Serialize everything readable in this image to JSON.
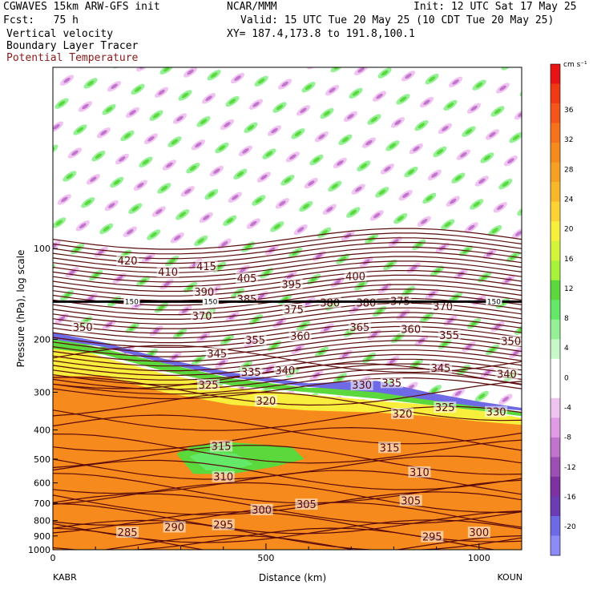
{
  "header": {
    "model": "CGWAVES 15km ARW-GFS init",
    "org": "NCAR/MMM",
    "init": "Init: 12 UTC Sat 17 May 25",
    "fcst": "Fcst:   75 h",
    "valid": "Valid: 15 UTC Tue 20 May 25 (10 CDT Tue 20 May 25)",
    "field1": "Vertical velocity",
    "field2": "Boundary Layer Tracer",
    "field3": "Potential Temperature",
    "xy": "XY= 187.4,173.8 to 191.8,100.1"
  },
  "colors": {
    "theta_contour": "#5a0a0a",
    "tropopause_line": "#000000"
  },
  "chart_data": {
    "type": "heatmap",
    "xlabel": "Distance (km)",
    "ylabel": "Pressure (hPa), log scale",
    "x_endpoint_labels": [
      "KABR",
      "KOUN"
    ],
    "xlim": [
      0,
      1100
    ],
    "x_ticks": [
      0,
      500,
      1000
    ],
    "ylim": [
      1000,
      25
    ],
    "y_scale": "log",
    "y_ticks": [
      1000,
      900,
      800,
      700,
      600,
      500,
      400,
      300,
      200,
      100
    ],
    "colorbar": {
      "units": "cm s⁻¹",
      "tick_labels": [
        36,
        32,
        28,
        24,
        20,
        16,
        12,
        8,
        4,
        0,
        -4,
        -8,
        -12,
        -16,
        -20
      ],
      "colors": [
        "#e81414",
        "#f03a14",
        "#f4561a",
        "#f6721c",
        "#f68a1c",
        "#f8a024",
        "#f8b82a",
        "#fcd234",
        "#f8ee3c",
        "#d4f43c",
        "#a8f23c",
        "#5ad83c",
        "#64e868",
        "#96f096",
        "#c8f8c8",
        "#ffffff",
        "#ffffff",
        "#f0c4f0",
        "#e09ae6",
        "#c074cc",
        "#9c50b4",
        "#7c32a0",
        "#6c3cb4",
        "#6e6ae6",
        "#8c8cf8"
      ]
    },
    "theta_labels": [
      {
        "value": 420,
        "x": 175,
        "p": 110
      },
      {
        "value": 410,
        "x": 270,
        "p": 120
      },
      {
        "value": 415,
        "x": 360,
        "p": 115
      },
      {
        "value": 405,
        "x": 455,
        "p": 126
      },
      {
        "value": 395,
        "x": 560,
        "p": 132
      },
      {
        "value": 400,
        "x": 710,
        "p": 124
      },
      {
        "value": 390,
        "x": 355,
        "p": 140
      },
      {
        "value": 385,
        "x": 455,
        "p": 148
      },
      {
        "value": 380,
        "x": 650,
        "p": 152
      },
      {
        "value": 380,
        "x": 735,
        "p": 152
      },
      {
        "value": 375,
        "x": 815,
        "p": 150
      },
      {
        "value": 375,
        "x": 565,
        "p": 160
      },
      {
        "value": 370,
        "x": 350,
        "p": 168
      },
      {
        "value": 370,
        "x": 915,
        "p": 156
      },
      {
        "value": 365,
        "x": 720,
        "p": 183
      },
      {
        "value": 360,
        "x": 580,
        "p": 196
      },
      {
        "value": 360,
        "x": 840,
        "p": 186
      },
      {
        "value": 355,
        "x": 475,
        "p": 202
      },
      {
        "value": 355,
        "x": 930,
        "p": 195
      },
      {
        "value": 350,
        "x": 70,
        "p": 183
      },
      {
        "value": 350,
        "x": 1075,
        "p": 204
      },
      {
        "value": 345,
        "x": 385,
        "p": 224
      },
      {
        "value": 345,
        "x": 910,
        "p": 250
      },
      {
        "value": 340,
        "x": 545,
        "p": 255
      },
      {
        "value": 340,
        "x": 1065,
        "p": 262
      },
      {
        "value": 335,
        "x": 465,
        "p": 258
      },
      {
        "value": 335,
        "x": 795,
        "p": 280
      },
      {
        "value": 330,
        "x": 725,
        "p": 285
      },
      {
        "value": 330,
        "x": 1040,
        "p": 350
      },
      {
        "value": 325,
        "x": 365,
        "p": 285
      },
      {
        "value": 325,
        "x": 920,
        "p": 338
      },
      {
        "value": 320,
        "x": 500,
        "p": 322
      },
      {
        "value": 320,
        "x": 820,
        "p": 355
      },
      {
        "value": 315,
        "x": 395,
        "p": 455
      },
      {
        "value": 315,
        "x": 790,
        "p": 460
      },
      {
        "value": 310,
        "x": 400,
        "p": 575
      },
      {
        "value": 310,
        "x": 860,
        "p": 555
      },
      {
        "value": 305,
        "x": 595,
        "p": 710
      },
      {
        "value": 305,
        "x": 840,
        "p": 690
      },
      {
        "value": 300,
        "x": 490,
        "p": 740
      },
      {
        "value": 300,
        "x": 1000,
        "p": 880
      },
      {
        "value": 295,
        "x": 400,
        "p": 830
      },
      {
        "value": 295,
        "x": 890,
        "p": 910
      },
      {
        "value": 290,
        "x": 285,
        "p": 845
      },
      {
        "value": 285,
        "x": 175,
        "p": 880
      }
    ],
    "tropopause_markers": [
      {
        "label": "150",
        "x": 185
      },
      {
        "label": "150",
        "x": 370
      },
      {
        "label": "150",
        "x": 1035
      }
    ],
    "grid": false,
    "legend": "colorbar-right"
  }
}
